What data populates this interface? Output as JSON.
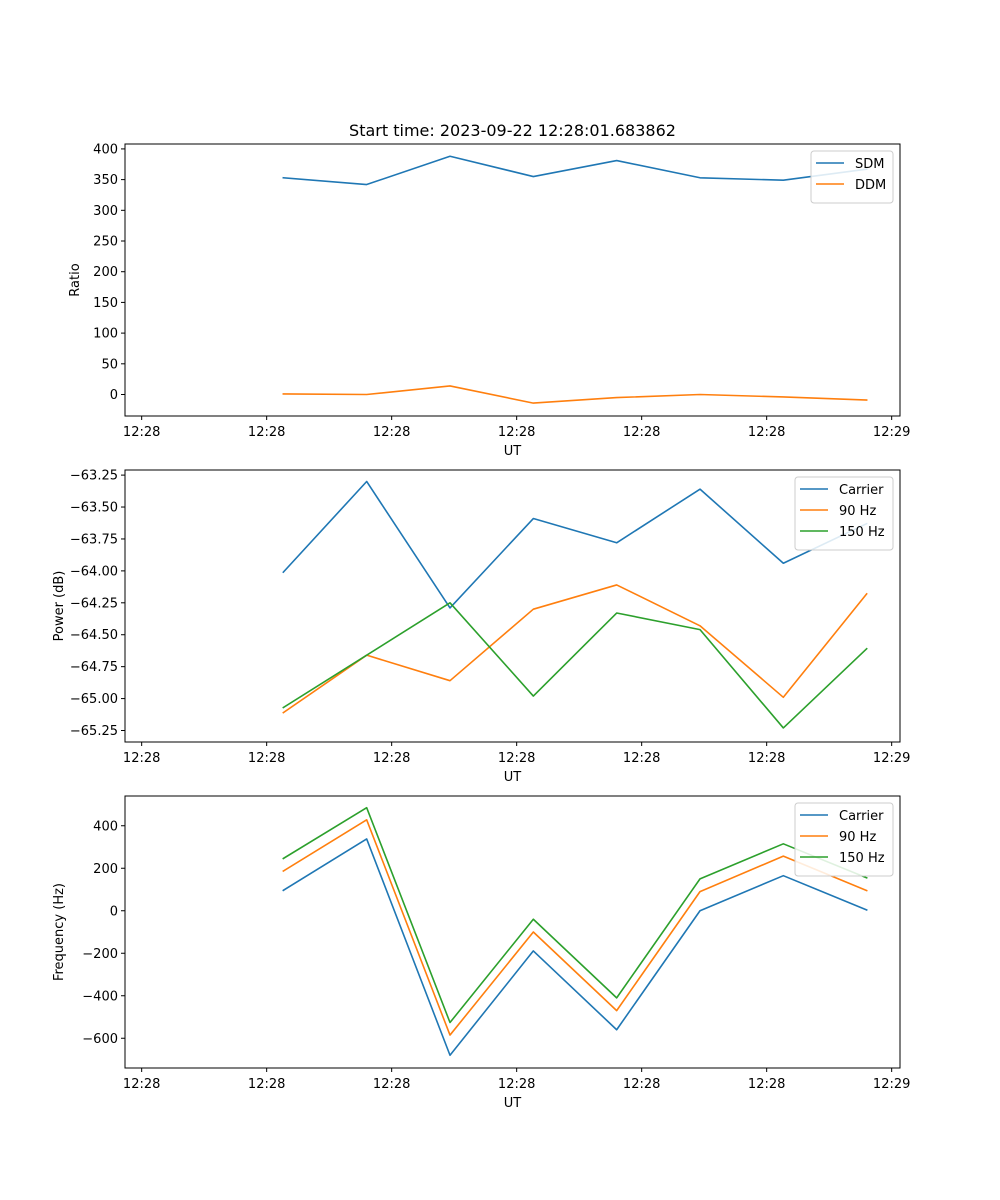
{
  "figure_title": "Start time: 2023-09-22 12:28:01.683862",
  "chart_data": [
    {
      "type": "line",
      "title": "Start time: 2023-09-22 12:28:01.683862",
      "xlabel": "UT",
      "ylabel": "Ratio",
      "x": [
        1,
        2,
        3,
        4,
        5,
        6,
        7,
        8
      ],
      "xlim": [
        -0.9,
        8.4
      ],
      "xticks": [
        {
          "value": -0.7,
          "label": "12:28"
        },
        {
          "value": 0.8,
          "label": "12:28"
        },
        {
          "value": 2.3,
          "label": "12:28"
        },
        {
          "value": 3.8,
          "label": "12:28"
        },
        {
          "value": 5.3,
          "label": "12:28"
        },
        {
          "value": 6.8,
          "label": "12:28"
        },
        {
          "value": 8.3,
          "label": "12:29"
        }
      ],
      "ylim": [
        -35,
        408
      ],
      "yticks": [
        0,
        50,
        100,
        150,
        200,
        250,
        300,
        350,
        400
      ],
      "ytick_labels": [
        "0",
        "50",
        "100",
        "150",
        "200",
        "250",
        "300",
        "350",
        "400"
      ],
      "legend_position": "top-right",
      "series": [
        {
          "name": "SDM",
          "color": "#1f77b4",
          "values": [
            353,
            342,
            388,
            355,
            381,
            353,
            349,
            367
          ]
        },
        {
          "name": "DDM",
          "color": "#ff7f0e",
          "values": [
            1,
            0,
            14,
            -14,
            -5,
            0,
            -4,
            -9
          ]
        }
      ]
    },
    {
      "type": "line",
      "title": "",
      "xlabel": "UT",
      "ylabel": "Power (dB)",
      "x": [
        1,
        2,
        3,
        4,
        5,
        6,
        7,
        8
      ],
      "xlim": [
        -0.9,
        8.4
      ],
      "xticks": [
        {
          "value": -0.7,
          "label": "12:28"
        },
        {
          "value": 0.8,
          "label": "12:28"
        },
        {
          "value": 2.3,
          "label": "12:28"
        },
        {
          "value": 3.8,
          "label": "12:28"
        },
        {
          "value": 5.3,
          "label": "12:28"
        },
        {
          "value": 6.8,
          "label": "12:28"
        },
        {
          "value": 8.3,
          "label": "12:29"
        }
      ],
      "ylim": [
        -65.34,
        -63.21
      ],
      "yticks": [
        -65.25,
        -65.0,
        -64.75,
        -64.5,
        -64.25,
        -64.0,
        -63.75,
        -63.5,
        -63.25
      ],
      "ytick_labels": [
        "−65.25",
        "−65.00",
        "−64.75",
        "−64.50",
        "−64.25",
        "−64.00",
        "−63.75",
        "−63.50",
        "−63.25"
      ],
      "legend_position": "top-right",
      "series": [
        {
          "name": "Carrier",
          "color": "#1f77b4",
          "values": [
            -64.01,
            -63.3,
            -64.29,
            -63.59,
            -63.78,
            -63.36,
            -63.94,
            -63.63
          ]
        },
        {
          "name": "90 Hz",
          "color": "#ff7f0e",
          "values": [
            -65.11,
            -64.66,
            -64.86,
            -64.3,
            -64.11,
            -64.43,
            -64.99,
            -64.18
          ]
        },
        {
          "name": "150 Hz",
          "color": "#2ca02c",
          "values": [
            -65.07,
            -64.66,
            -64.25,
            -64.98,
            -64.33,
            -64.46,
            -65.23,
            -64.61
          ]
        }
      ]
    },
    {
      "type": "line",
      "title": "",
      "xlabel": "UT",
      "ylabel": "Frequency (Hz)",
      "x": [
        1,
        2,
        3,
        4,
        5,
        6,
        7,
        8
      ],
      "xlim": [
        -0.9,
        8.4
      ],
      "xticks": [
        {
          "value": -0.7,
          "label": "12:28"
        },
        {
          "value": 0.8,
          "label": "12:28"
        },
        {
          "value": 2.3,
          "label": "12:28"
        },
        {
          "value": 3.8,
          "label": "12:28"
        },
        {
          "value": 5.3,
          "label": "12:28"
        },
        {
          "value": 6.8,
          "label": "12:28"
        },
        {
          "value": 8.3,
          "label": "12:29"
        }
      ],
      "ylim": [
        -740,
        540
      ],
      "yticks": [
        -600,
        -400,
        -200,
        0,
        200,
        400
      ],
      "ytick_labels": [
        "−600",
        "−400",
        "−200",
        "0",
        "200",
        "400"
      ],
      "legend_position": "top-right",
      "series": [
        {
          "name": "Carrier",
          "color": "#1f77b4",
          "values": [
            96,
            338,
            -680,
            -189,
            -560,
            0,
            165,
            4
          ]
        },
        {
          "name": "90 Hz",
          "color": "#ff7f0e",
          "values": [
            187,
            428,
            -585,
            -100,
            -470,
            90,
            257,
            95
          ]
        },
        {
          "name": "150 Hz",
          "color": "#2ca02c",
          "values": [
            246,
            485,
            -526,
            -40,
            -410,
            150,
            315,
            155
          ]
        }
      ]
    }
  ]
}
